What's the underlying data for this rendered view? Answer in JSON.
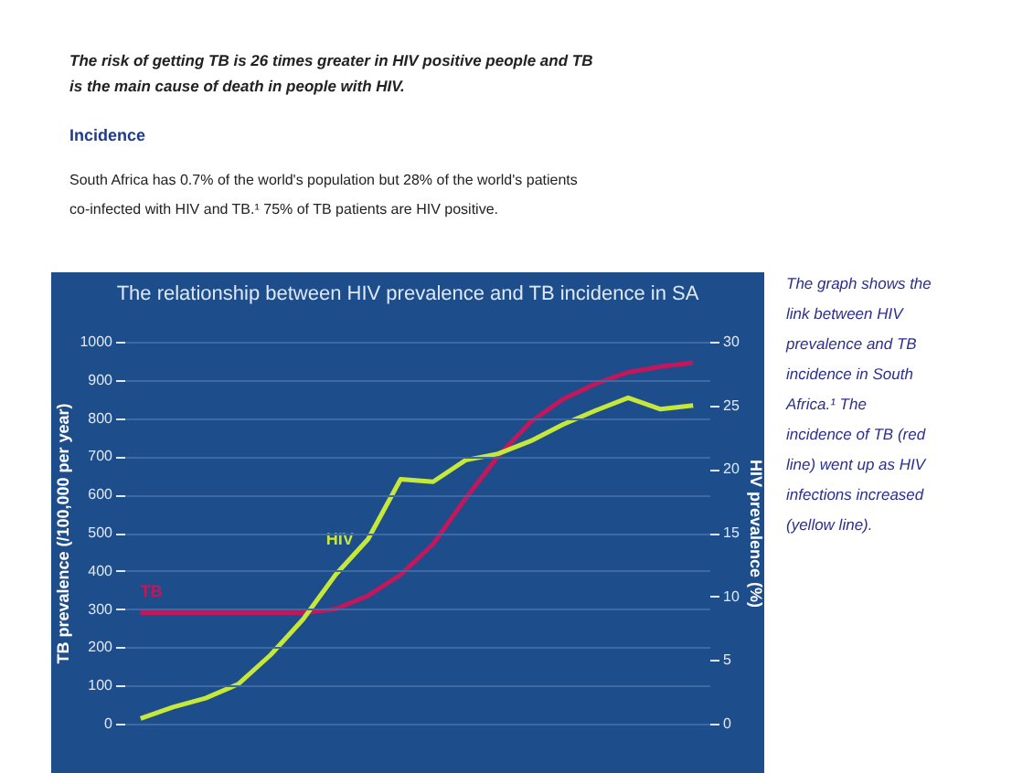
{
  "chart_data": {
    "type": "line",
    "title": "The relationship between HIV prevalence and TB incidence in SA",
    "ylabel": "TB prevalence (/100,000 per year)",
    "y2label": "HIV prevalence (%)",
    "categories": [
      null,
      null,
      null,
      null,
      null,
      null,
      null,
      null,
      null,
      null,
      null,
      null,
      null,
      null,
      null,
      null,
      null,
      null
    ],
    "series": [
      {
        "name": "TB",
        "color": "#c2185b",
        "values": [
          290,
          290,
          290,
          290,
          290,
          290,
          300,
          335,
          390,
          470,
          590,
          700,
          790,
          850,
          890,
          920,
          935,
          945
        ]
      },
      {
        "name": "HIV",
        "color": "#c6e83a",
        "axis": "y2",
        "values": [
          0.4,
          1.3,
          2.0,
          3.1,
          5.4,
          8.2,
          11.7,
          14.5,
          19.2,
          19.0,
          20.7,
          21.2,
          22.2,
          23.5,
          24.6,
          25.6,
          24.7,
          25.0
        ]
      }
    ],
    "ylim": [
      0,
      1000
    ],
    "yticks": [
      0,
      100,
      200,
      300,
      400,
      500,
      600,
      700,
      800,
      900,
      1000
    ],
    "y2lim": [
      0,
      30
    ],
    "y2ticks": [
      0,
      5,
      10,
      15,
      20,
      25,
      30
    ],
    "grid": "y",
    "annotations": [
      "The risk of getting TB is 26 times greater in HIV positive people and TB is the main cause of death in people with HIV.",
      "Incidence",
      "South Africa has 0.7% of the world's population but 28% of the world's patients co-infected with HIV and TB.¹ 75% of TB patients are HIV positive.",
      "The graph shows the link between HIV prevalence and TB incidence in South Africa.¹ The incidence of TB (red line) went up as HIV infections increased (yellow line)."
    ]
  }
}
